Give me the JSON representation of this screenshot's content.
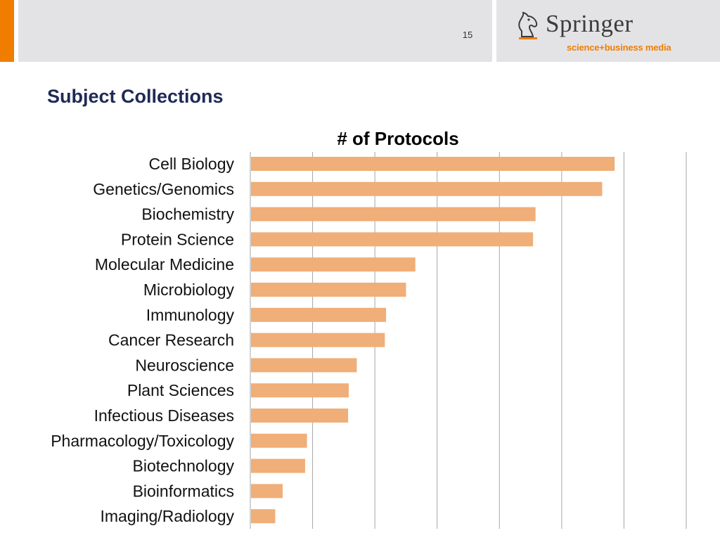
{
  "header": {
    "page_number": "15",
    "logo": {
      "name": "Springer",
      "tagline": "science+business media",
      "icon": "knight-horse-icon"
    }
  },
  "slide": {
    "title": "Subject Collections"
  },
  "colors": {
    "accent": "#f07d00",
    "bar": "#f0ae78",
    "header_band": "#e3e3e6",
    "title": "#1f2a55",
    "gridline": "#a6a6a6"
  },
  "chart_data": {
    "type": "bar",
    "orientation": "horizontal",
    "title": "# of Protocols",
    "xlabel": "",
    "ylabel": "",
    "grid": true,
    "categories": [
      "Cell Biology",
      "Genetics/Genomics",
      "Biochemistry",
      "Protein Science",
      "Molecular Medicine",
      "Microbiology",
      "Immunology",
      "Cancer Research",
      "Neuroscience",
      "Plant Sciences",
      "Infectious Diseases",
      "Pharmacology/Toxicology",
      "Biotechnology",
      "Bioinformatics",
      "Imaging/Radiology"
    ],
    "values": [
      5850,
      5650,
      4580,
      4540,
      2650,
      2500,
      2180,
      2160,
      1710,
      1580,
      1570,
      910,
      880,
      520,
      400
    ],
    "xlim": [
      0,
      7000
    ],
    "x_gridline_step": 1000
  }
}
